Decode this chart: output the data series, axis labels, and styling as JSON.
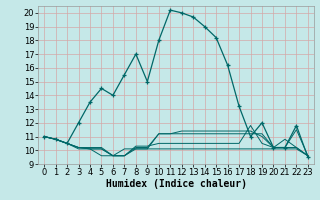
{
  "xlabel": "Humidex (Indice chaleur)",
  "bg_color": "#c5e8e8",
  "line_color": "#006868",
  "grid_color": "#d4a8a8",
  "xlim": [
    -0.5,
    23.5
  ],
  "ylim": [
    9,
    20.5
  ],
  "yticks": [
    9,
    10,
    11,
    12,
    13,
    14,
    15,
    16,
    17,
    18,
    19,
    20
  ],
  "xticks": [
    0,
    1,
    2,
    3,
    4,
    5,
    6,
    7,
    8,
    9,
    10,
    11,
    12,
    13,
    14,
    15,
    16,
    17,
    18,
    19,
    20,
    21,
    22,
    23
  ],
  "main_x": [
    0,
    1,
    2,
    3,
    4,
    5,
    6,
    7,
    8,
    9,
    10,
    11,
    12,
    13,
    14,
    15,
    16,
    17,
    18,
    19,
    20,
    21,
    22,
    23
  ],
  "main_y": [
    11.0,
    10.8,
    10.5,
    12.0,
    13.5,
    14.5,
    14.0,
    15.5,
    17.0,
    15.0,
    18.0,
    20.2,
    20.0,
    19.7,
    19.0,
    18.2,
    16.2,
    13.2,
    11.0,
    12.0,
    10.2,
    10.2,
    11.8,
    9.5
  ],
  "s1_x": [
    0,
    1,
    2,
    3,
    4,
    5,
    6,
    7,
    8,
    9,
    10,
    11,
    12,
    13,
    14,
    15,
    16,
    17,
    18,
    19,
    20,
    21,
    22,
    23
  ],
  "s1_y": [
    11.0,
    10.8,
    10.5,
    10.1,
    10.1,
    10.1,
    9.6,
    9.6,
    10.1,
    10.1,
    10.1,
    10.1,
    10.1,
    10.1,
    10.1,
    10.1,
    10.1,
    10.1,
    10.1,
    10.1,
    10.1,
    10.1,
    10.1,
    9.6
  ],
  "s2_x": [
    0,
    1,
    2,
    3,
    4,
    5,
    6,
    7,
    8,
    9,
    10,
    11,
    12,
    13,
    14,
    15,
    16,
    17,
    18,
    19,
    20,
    21,
    22,
    23
  ],
  "s2_y": [
    11.0,
    10.8,
    10.5,
    10.2,
    10.2,
    10.2,
    9.6,
    9.6,
    10.3,
    10.3,
    10.5,
    10.5,
    10.5,
    10.5,
    10.5,
    10.5,
    10.5,
    10.5,
    11.8,
    10.5,
    10.2,
    10.8,
    10.2,
    9.6
  ],
  "s3_x": [
    0,
    1,
    2,
    3,
    4,
    5,
    6,
    7,
    8,
    9,
    10,
    11,
    12,
    13,
    14,
    15,
    16,
    17,
    18,
    19,
    20,
    21,
    22,
    23
  ],
  "s3_y": [
    11.0,
    10.8,
    10.5,
    10.2,
    10.1,
    10.1,
    9.6,
    9.6,
    10.2,
    10.2,
    11.2,
    11.2,
    11.2,
    11.2,
    11.2,
    11.2,
    11.2,
    11.2,
    11.2,
    11.2,
    10.2,
    10.2,
    10.2,
    9.6
  ],
  "s4_x": [
    0,
    1,
    2,
    3,
    4,
    5,
    6,
    7,
    8,
    9,
    10,
    11,
    12,
    13,
    14,
    15,
    16,
    17,
    18,
    19,
    20,
    21,
    22,
    23
  ],
  "s4_y": [
    11.0,
    10.8,
    10.5,
    10.2,
    10.1,
    9.6,
    9.6,
    10.1,
    10.1,
    10.1,
    11.2,
    11.2,
    11.4,
    11.4,
    11.4,
    11.4,
    11.4,
    11.4,
    11.4,
    11.0,
    10.2,
    10.2,
    11.5,
    9.6
  ],
  "xlabel_fontsize": 7,
  "tick_fontsize": 6
}
